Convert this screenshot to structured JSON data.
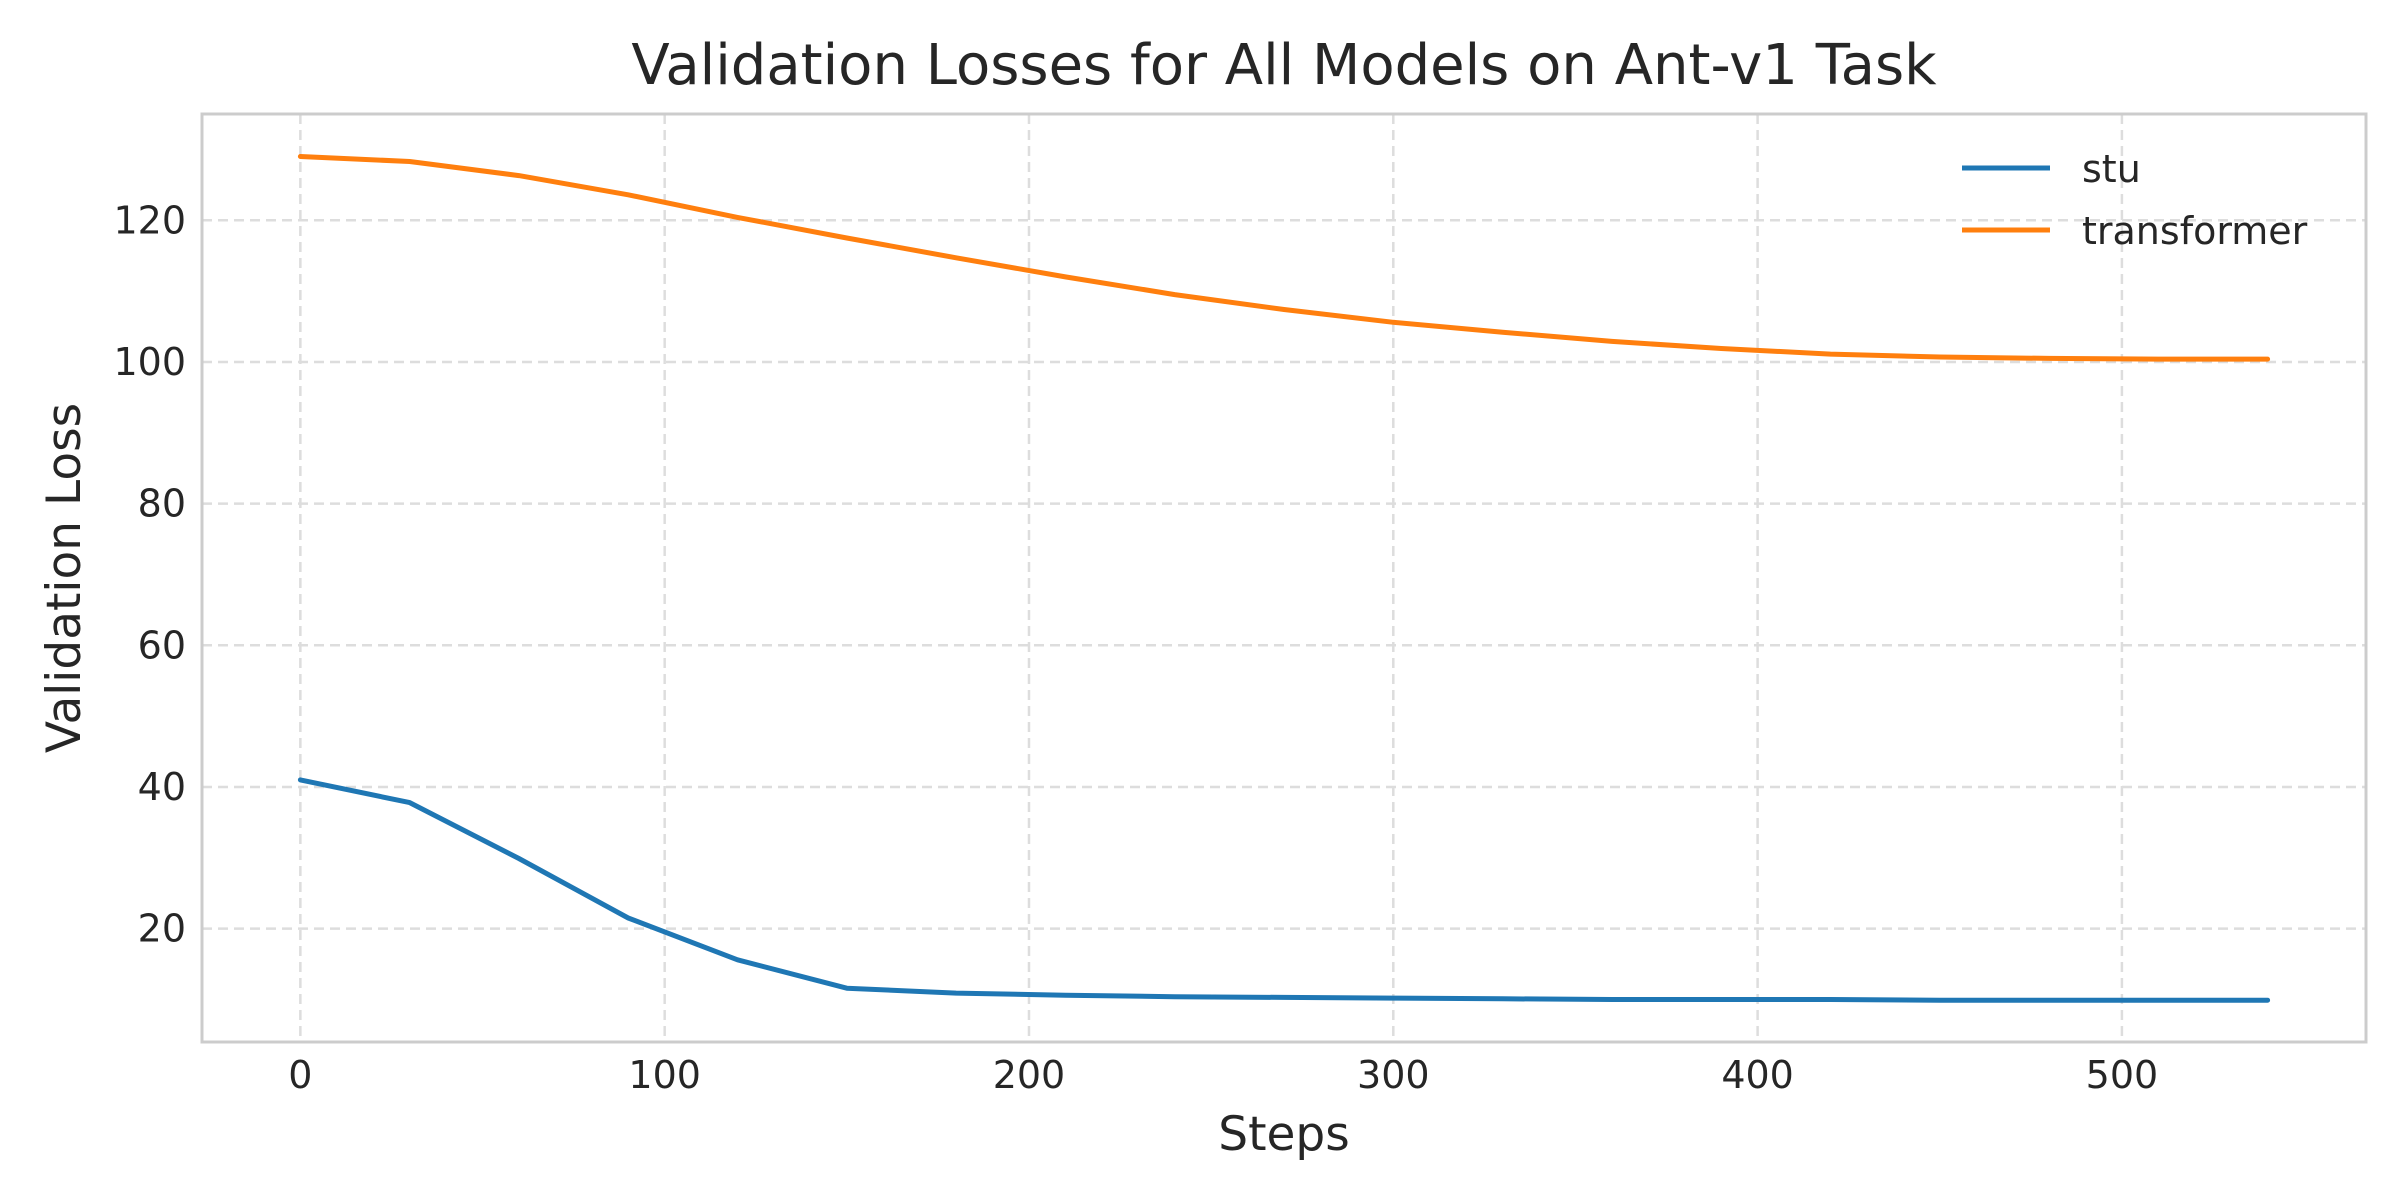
{
  "chart_data": {
    "type": "line",
    "title": "Validation Losses for All Models on Ant-v1 Task",
    "xlabel": "Steps",
    "ylabel": "Validation Loss",
    "xlim": [
      -27,
      567
    ],
    "ylim": [
      4,
      135
    ],
    "xticks": [
      0,
      100,
      200,
      300,
      400,
      500
    ],
    "yticks": [
      20,
      40,
      60,
      80,
      100,
      120
    ],
    "grid": true,
    "grid_style": "dashed",
    "legend_position": "top-right",
    "x": [
      0,
      30,
      60,
      90,
      120,
      150,
      180,
      210,
      240,
      270,
      300,
      330,
      360,
      390,
      420,
      450,
      480,
      510,
      540
    ],
    "series": [
      {
        "name": "stu",
        "color": "#1f77b4",
        "values": [
          41.0,
          37.8,
          29.9,
          21.5,
          15.6,
          11.6,
          10.9,
          10.6,
          10.4,
          10.3,
          10.2,
          10.1,
          10.0,
          10.0,
          10.0,
          9.9,
          9.9,
          9.9,
          9.9
        ]
      },
      {
        "name": "transformer",
        "color": "#ff7f0e",
        "values": [
          129.0,
          128.3,
          126.3,
          123.6,
          120.4,
          117.5,
          114.7,
          112.0,
          109.5,
          107.4,
          105.6,
          104.2,
          102.9,
          101.9,
          101.1,
          100.7,
          100.5,
          100.4,
          100.4
        ]
      }
    ]
  }
}
